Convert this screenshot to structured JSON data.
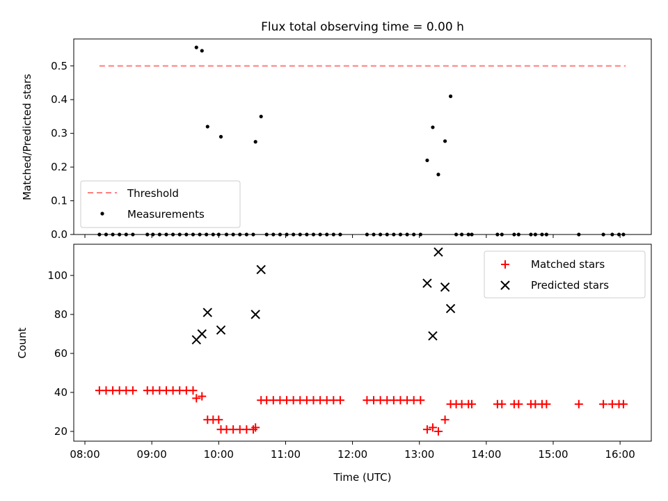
{
  "chart_data": [
    {
      "type": "scatter",
      "title": "Flux total observing time = 0.00 h",
      "xlabel": "",
      "ylabel": "Matched/Predicted stars",
      "x_unit": "time (UTC)",
      "xlim": [
        "07:50",
        "16:28"
      ],
      "ylim": [
        0,
        0.58
      ],
      "yticks": [
        "0.0",
        "0.1",
        "0.2",
        "0.3",
        "0.4",
        "0.5"
      ],
      "legend_position": "lower-left",
      "threshold": {
        "name": "Threshold",
        "value": 0.5,
        "x_range": [
          "08:13",
          "16:05"
        ],
        "color": "#ff7f7f",
        "style": "dashed"
      },
      "series": [
        {
          "name": "Measurements",
          "color": "#000000",
          "marker": "dot",
          "points": [
            [
              "08:13",
              0
            ],
            [
              "08:19",
              0
            ],
            [
              "08:25",
              0
            ],
            [
              "08:31",
              0
            ],
            [
              "08:37",
              0
            ],
            [
              "08:43",
              0
            ],
            [
              "08:56",
              0
            ],
            [
              "09:01",
              0
            ],
            [
              "09:07",
              0
            ],
            [
              "09:13",
              0
            ],
            [
              "09:19",
              0
            ],
            [
              "09:25",
              0
            ],
            [
              "09:31",
              0
            ],
            [
              "09:37",
              0
            ],
            [
              "09:43",
              0
            ],
            [
              "09:49",
              0
            ],
            [
              "09:40",
              0.555
            ],
            [
              "09:45",
              0.545
            ],
            [
              "09:50",
              0.32
            ],
            [
              "10:02",
              0.29
            ],
            [
              "09:55",
              0
            ],
            [
              "10:00",
              0
            ],
            [
              "10:07",
              0
            ],
            [
              "10:13",
              0
            ],
            [
              "10:19",
              0
            ],
            [
              "10:25",
              0
            ],
            [
              "10:31",
              0
            ],
            [
              "10:33",
              0.275
            ],
            [
              "10:38",
              0.35
            ],
            [
              "10:43",
              0
            ],
            [
              "10:49",
              0
            ],
            [
              "10:55",
              0
            ],
            [
              "11:01",
              0
            ],
            [
              "11:07",
              0
            ],
            [
              "11:13",
              0
            ],
            [
              "11:19",
              0
            ],
            [
              "11:25",
              0
            ],
            [
              "11:31",
              0
            ],
            [
              "11:37",
              0
            ],
            [
              "11:43",
              0
            ],
            [
              "11:49",
              0
            ],
            [
              "12:13",
              0
            ],
            [
              "12:19",
              0
            ],
            [
              "12:25",
              0
            ],
            [
              "12:31",
              0
            ],
            [
              "12:37",
              0
            ],
            [
              "12:43",
              0
            ],
            [
              "12:49",
              0
            ],
            [
              "12:55",
              0
            ],
            [
              "13:01",
              0
            ],
            [
              "13:07",
              0.22
            ],
            [
              "13:12",
              0.318
            ],
            [
              "13:17",
              0.178
            ],
            [
              "13:23",
              0.277
            ],
            [
              "13:28",
              0.41
            ],
            [
              "13:33",
              0
            ],
            [
              "13:38",
              0
            ],
            [
              "13:44",
              0
            ],
            [
              "13:47",
              0
            ],
            [
              "14:10",
              0
            ],
            [
              "14:14",
              0
            ],
            [
              "14:25",
              0
            ],
            [
              "14:29",
              0
            ],
            [
              "14:40",
              0
            ],
            [
              "14:44",
              0
            ],
            [
              "14:50",
              0
            ],
            [
              "14:54",
              0
            ],
            [
              "15:23",
              0
            ],
            [
              "15:45",
              0
            ],
            [
              "15:53",
              0
            ],
            [
              "15:59",
              0
            ],
            [
              "16:03",
              0
            ]
          ]
        }
      ]
    },
    {
      "type": "scatter",
      "title": "",
      "xlabel": "Time (UTC)",
      "ylabel": "Count",
      "x_unit": "time (UTC)",
      "xlim": [
        "07:50",
        "16:28"
      ],
      "ylim": [
        15,
        116
      ],
      "yticks": [
        "20",
        "40",
        "60",
        "80",
        "100"
      ],
      "xticks": [
        "08:00",
        "09:00",
        "10:00",
        "11:00",
        "12:00",
        "13:00",
        "14:00",
        "15:00",
        "16:00"
      ],
      "legend_position": "upper-right",
      "series": [
        {
          "name": "Matched stars",
          "color": "#ff0000",
          "marker": "plus",
          "points": [
            [
              "08:13",
              41
            ],
            [
              "08:19",
              41
            ],
            [
              "08:25",
              41
            ],
            [
              "08:31",
              41
            ],
            [
              "08:37",
              41
            ],
            [
              "08:43",
              41
            ],
            [
              "08:56",
              41
            ],
            [
              "09:01",
              41
            ],
            [
              "09:07",
              41
            ],
            [
              "09:13",
              41
            ],
            [
              "09:19",
              41
            ],
            [
              "09:25",
              41
            ],
            [
              "09:31",
              41
            ],
            [
              "09:37",
              41
            ],
            [
              "09:40",
              37
            ],
            [
              "09:45",
              38
            ],
            [
              "09:50",
              26
            ],
            [
              "09:55",
              26
            ],
            [
              "10:00",
              26
            ],
            [
              "10:02",
              21
            ],
            [
              "10:07",
              21
            ],
            [
              "10:13",
              21
            ],
            [
              "10:19",
              21
            ],
            [
              "10:25",
              21
            ],
            [
              "10:31",
              21
            ],
            [
              "10:33",
              22
            ],
            [
              "10:38",
              36
            ],
            [
              "10:43",
              36
            ],
            [
              "10:49",
              36
            ],
            [
              "10:55",
              36
            ],
            [
              "11:01",
              36
            ],
            [
              "11:07",
              36
            ],
            [
              "11:13",
              36
            ],
            [
              "11:19",
              36
            ],
            [
              "11:25",
              36
            ],
            [
              "11:31",
              36
            ],
            [
              "11:37",
              36
            ],
            [
              "11:43",
              36
            ],
            [
              "11:49",
              36
            ],
            [
              "12:13",
              36
            ],
            [
              "12:19",
              36
            ],
            [
              "12:25",
              36
            ],
            [
              "12:31",
              36
            ],
            [
              "12:37",
              36
            ],
            [
              "12:43",
              36
            ],
            [
              "12:49",
              36
            ],
            [
              "12:55",
              36
            ],
            [
              "13:01",
              36
            ],
            [
              "13:07",
              21
            ],
            [
              "13:12",
              22
            ],
            [
              "13:17",
              20
            ],
            [
              "13:23",
              26
            ],
            [
              "13:28",
              34
            ],
            [
              "13:33",
              34
            ],
            [
              "13:38",
              34
            ],
            [
              "13:44",
              34
            ],
            [
              "13:47",
              34
            ],
            [
              "14:10",
              34
            ],
            [
              "14:14",
              34
            ],
            [
              "14:25",
              34
            ],
            [
              "14:29",
              34
            ],
            [
              "14:40",
              34
            ],
            [
              "14:44",
              34
            ],
            [
              "14:50",
              34
            ],
            [
              "14:54",
              34
            ],
            [
              "15:23",
              34
            ],
            [
              "15:45",
              34
            ],
            [
              "15:53",
              34
            ],
            [
              "15:59",
              34
            ],
            [
              "16:03",
              34
            ]
          ]
        },
        {
          "name": "Predicted stars",
          "color": "#000000",
          "marker": "x",
          "points": [
            [
              "09:40",
              67
            ],
            [
              "09:45",
              70
            ],
            [
              "09:50",
              81
            ],
            [
              "10:02",
              72
            ],
            [
              "10:33",
              80
            ],
            [
              "10:38",
              103
            ],
            [
              "13:07",
              96
            ],
            [
              "13:12",
              69
            ],
            [
              "13:17",
              112
            ],
            [
              "13:23",
              94
            ],
            [
              "13:28",
              83
            ]
          ]
        }
      ]
    }
  ]
}
